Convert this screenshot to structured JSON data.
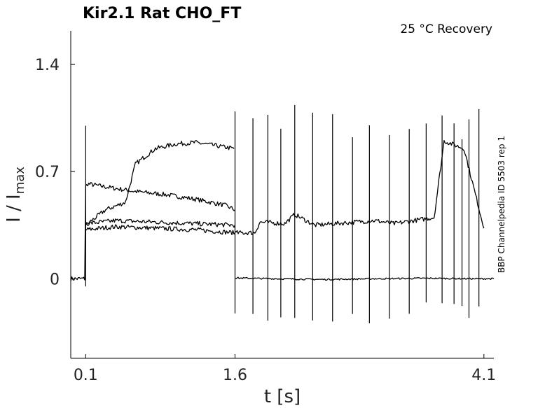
{
  "chart_data": {
    "type": "line",
    "title": "Kir2.1  Rat  CHO_FT",
    "annotation": "25 °C  Recovery",
    "side_label": "BBP Channelpedia ID 5503 rep 1",
    "xlabel": "t [s]",
    "ylabel_main": "I / I",
    "ylabel_sub": "max",
    "xlim": [
      -0.05,
      4.2
    ],
    "ylim": [
      -0.52,
      1.62
    ],
    "xticks": [
      0.1,
      1.6,
      4.1
    ],
    "xtick_labels": [
      "0.1",
      "1.6",
      "4.1"
    ],
    "yticks": [
      0,
      0.7,
      1.4
    ],
    "ytick_labels": [
      "0",
      "0.7",
      "1.4"
    ],
    "pulse_times": [
      0.1,
      1.6,
      1.78,
      1.93,
      2.06,
      2.2,
      2.38,
      2.58,
      2.78,
      2.95,
      3.15,
      3.35,
      3.52,
      3.68,
      3.8,
      3.88,
      3.95,
      4.05
    ],
    "series": [
      {
        "x": [
          -0.05,
          0.09,
          0.1,
          0.12,
          0.3,
          0.6,
          0.9,
          1.2,
          1.5,
          1.6
        ],
        "y": [
          0,
          0,
          0.6,
          0.62,
          0.6,
          0.57,
          0.55,
          0.52,
          0.48,
          0.45
        ]
      },
      {
        "x": [
          0.1,
          0.3,
          0.5,
          0.6,
          0.8,
          1.0,
          1.2,
          1.4,
          1.59
        ],
        "y": [
          0.35,
          0.45,
          0.5,
          0.75,
          0.85,
          0.88,
          0.89,
          0.87,
          0.85
        ]
      },
      {
        "x": [
          0.1,
          0.4,
          0.8,
          1.2,
          1.6
        ],
        "y": [
          0.32,
          0.34,
          0.33,
          0.32,
          0.3
        ]
      },
      {
        "x": [
          0.1,
          0.4,
          0.8,
          1.2,
          1.6
        ],
        "y": [
          0.36,
          0.38,
          0.37,
          0.36,
          0.35
        ]
      },
      {
        "x": [
          1.6,
          1.8,
          1.85,
          2.1,
          2.2,
          2.4,
          2.6,
          2.8,
          3.0,
          3.2,
          3.4,
          3.6,
          3.7,
          3.9,
          4.1
        ],
        "y": [
          0.3,
          0.3,
          0.37,
          0.36,
          0.42,
          0.35,
          0.36,
          0.37,
          0.38,
          0.36,
          0.38,
          0.4,
          0.9,
          0.85,
          0.33
        ]
      },
      {
        "x": [
          1.6,
          2.0,
          2.5,
          3.0,
          3.5,
          4.0,
          4.2
        ],
        "y": [
          0.005,
          0.0,
          -0.005,
          0.0,
          0.003,
          0.0,
          0.0
        ]
      }
    ]
  }
}
